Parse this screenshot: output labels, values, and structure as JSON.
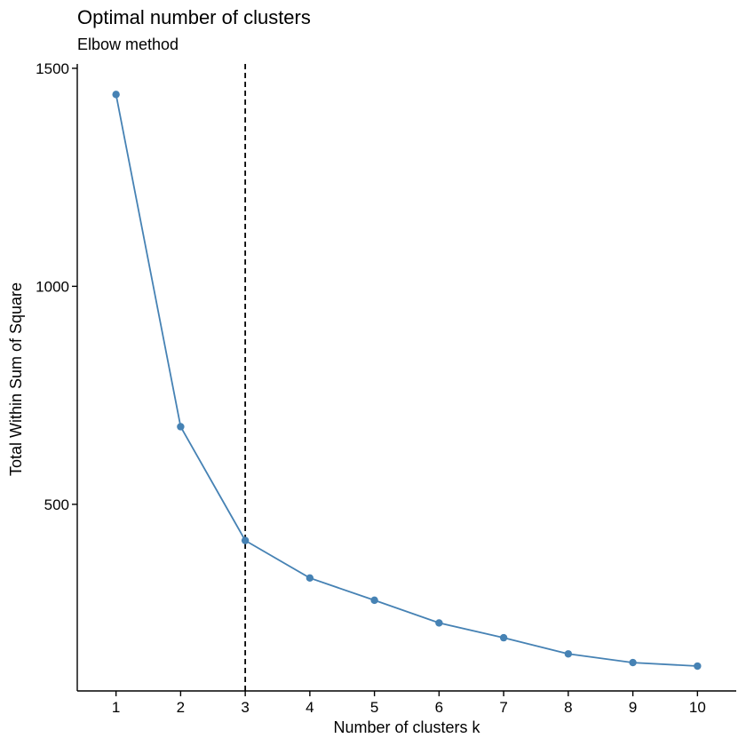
{
  "chart_data": {
    "type": "line",
    "title": "Optimal number of clusters",
    "subtitle": "Elbow method",
    "xlabel": "Number of clusters k",
    "ylabel": "Total Within Sum of Square",
    "x": [
      1,
      2,
      3,
      4,
      5,
      6,
      7,
      8,
      9,
      10
    ],
    "x_tick_labels": [
      "1",
      "2",
      "3",
      "4",
      "5",
      "6",
      "7",
      "8",
      "9",
      "10"
    ],
    "y_ticks": [
      500,
      1000,
      1500
    ],
    "y_tick_labels": [
      "500",
      "1000",
      "1500"
    ],
    "xlim": [
      0.4,
      10.6
    ],
    "ylim": [
      72,
      1510
    ],
    "series": [
      {
        "values": [
          1440,
          678,
          417,
          331,
          280,
          228,
          194,
          157,
          137,
          129
        ],
        "color": "#4682b4"
      }
    ],
    "reference_line": {
      "orientation": "vertical",
      "x": 3,
      "style": "dashed",
      "color": "#000000"
    },
    "grid": false,
    "legend": "none"
  }
}
